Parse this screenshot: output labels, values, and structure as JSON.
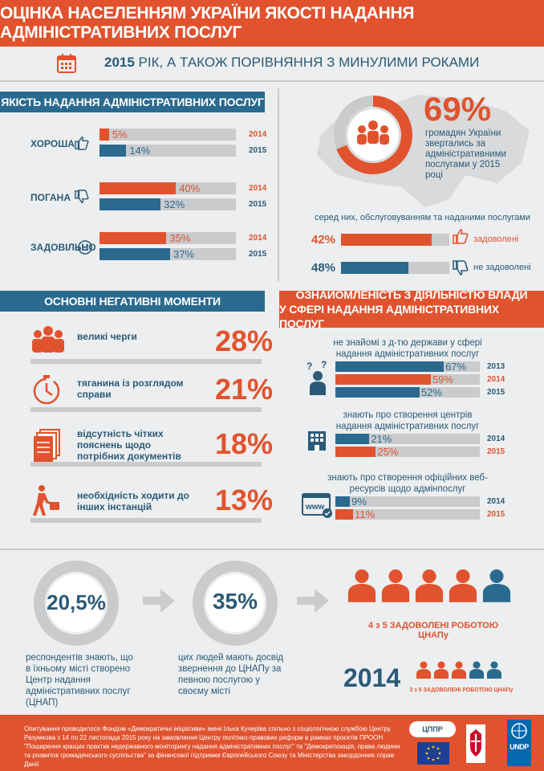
{
  "header": {
    "title": "ОЦІНКА НАСЕЛЕННЯМ УКРАЇНИ ЯКОСТІ НАДАННЯ АДМІНІСТРАТИВНИХ ПОСЛУГ"
  },
  "subtitle": {
    "year": "2015",
    "rest": " РІК, А ТАКОЖ ПОРІВНЯННЯ З МИНУЛИМИ РОКАМИ"
  },
  "quality": {
    "title": "ЯКІСТЬ НАДАННЯ АДМІНІСТРАТИВНИХ ПОСЛУГ",
    "rows": [
      {
        "label": "ХОРОША",
        "v2014": "5%",
        "v2015": "14%",
        "f2014": 0.05,
        "f2015": 0.14
      },
      {
        "label": "ПОГАНА",
        "v2014": "40%",
        "v2015": "32%",
        "f2014": 0.4,
        "f2015": 0.32
      },
      {
        "label": "ЗАДОВІЛЬНО",
        "v2014": "35%",
        "v2015": "37%",
        "f2014": 0.35,
        "f2015": 0.37
      }
    ],
    "y2014": "2014",
    "y2015": "2015"
  },
  "applied": {
    "percent": "69%",
    "text": "громадян України звертались за адміністративними послугами у 2015 році",
    "fraction": 0.69,
    "among": "серед них, обслуговуванням та наданими послугами",
    "satisfied_pct": "42%",
    "satisfied_label": "задоволені",
    "satisfied_fraction": 0.42,
    "unsatisfied_pct": "48%",
    "unsatisfied_label": "не задоволені",
    "unsatisfied_fraction": 0.48
  },
  "negative": {
    "title": "ОСНОВНІ НЕГАТИВНІ МОМЕНТИ",
    "items": [
      {
        "text": "великі черги",
        "pct": "28%"
      },
      {
        "text": "тяганина із розглядом справи",
        "pct": "21%"
      },
      {
        "text": "відсутність чітких пояснень щодо потрібних документів",
        "pct": "18%"
      },
      {
        "text": "необхідність ходити до інших інстанцій",
        "pct": "13%"
      }
    ]
  },
  "familiarity": {
    "title1": "ОЗНАЙОМЛЕНІСТЬ З ДІЯЛЬНІСТЮ ВЛАДИ",
    "title2": "У СФЕРІ НАДАННЯ АДМІНІСТРАТИВНИХ ПОСЛУГ",
    "groups": [
      {
        "text": "не знайомі з д-тю держави у сфері надання адміністративних послуг",
        "rows": [
          {
            "val": "67%",
            "year": "2013",
            "frac": 0.67,
            "color": "blue"
          },
          {
            "val": "59%",
            "year": "2014",
            "frac": 0.59,
            "color": "red"
          },
          {
            "val": "52%",
            "year": "2015",
            "frac": 0.52,
            "color": "blue"
          }
        ]
      },
      {
        "text": "знають про створення центрів надання адміністративних послуг",
        "rows": [
          {
            "val": "21%",
            "year": "2014",
            "frac": 0.21,
            "color": "blue"
          },
          {
            "val": "25%",
            "year": "2015",
            "frac": 0.25,
            "color": "red"
          }
        ]
      },
      {
        "text": "знають про створення офіційних веб-ресурсів щодо адмінпослуг",
        "rows": [
          {
            "val": "9%",
            "year": "2014",
            "frac": 0.09,
            "color": "blue"
          },
          {
            "val": "11%",
            "year": "2015",
            "frac": 0.11,
            "color": "red"
          }
        ]
      }
    ],
    "www": "www"
  },
  "cnap": {
    "donut1_val": "20,5%",
    "donut1_frac": 0.205,
    "donut1_text": "респондентів знають, що в їхньому місті створено Центр надання адміністративних послуг (ЦНАП)",
    "donut2_val": "35%",
    "donut2_frac": 0.35,
    "donut2_text": "цих людей мають досвід звернення до ЦНАПу за певною послугою у своєму місті",
    "satisfied_2015": "4 з 5 ЗАДОВОЛЕНІ РОБОТОЮ ЦНАПу",
    "year_2014": "2014",
    "satisfied_2014": "3 з 5 ЗАДОВОЛЕНІ РОБОТОЮ ЦНАПу"
  },
  "footer": {
    "note": "Опитування проводилося Фондом «Демократичні ініціативи» імені Ілька Кучеріва спільно з соціологічною службою Центру Разумкова з 14 по 22 листопада 2015 року на замовлення Центру політико-правових реформ в рамках проєктів ПРООН \"Поширення кращих практик недержавного моніторингу надання адміністративних послуг\" та \"Демократизація, права людини та розвиток громадянського суспільства\" за фінансової підтримки Європейського Союзу та Міністерства закордонних справ Данії",
    "logo_cppr": "ЦППР",
    "logo_undp": "UNDP"
  },
  "colors": {
    "red": "#e0532e",
    "blue": "#2b6a8f",
    "gray": "#c9cbcd"
  }
}
